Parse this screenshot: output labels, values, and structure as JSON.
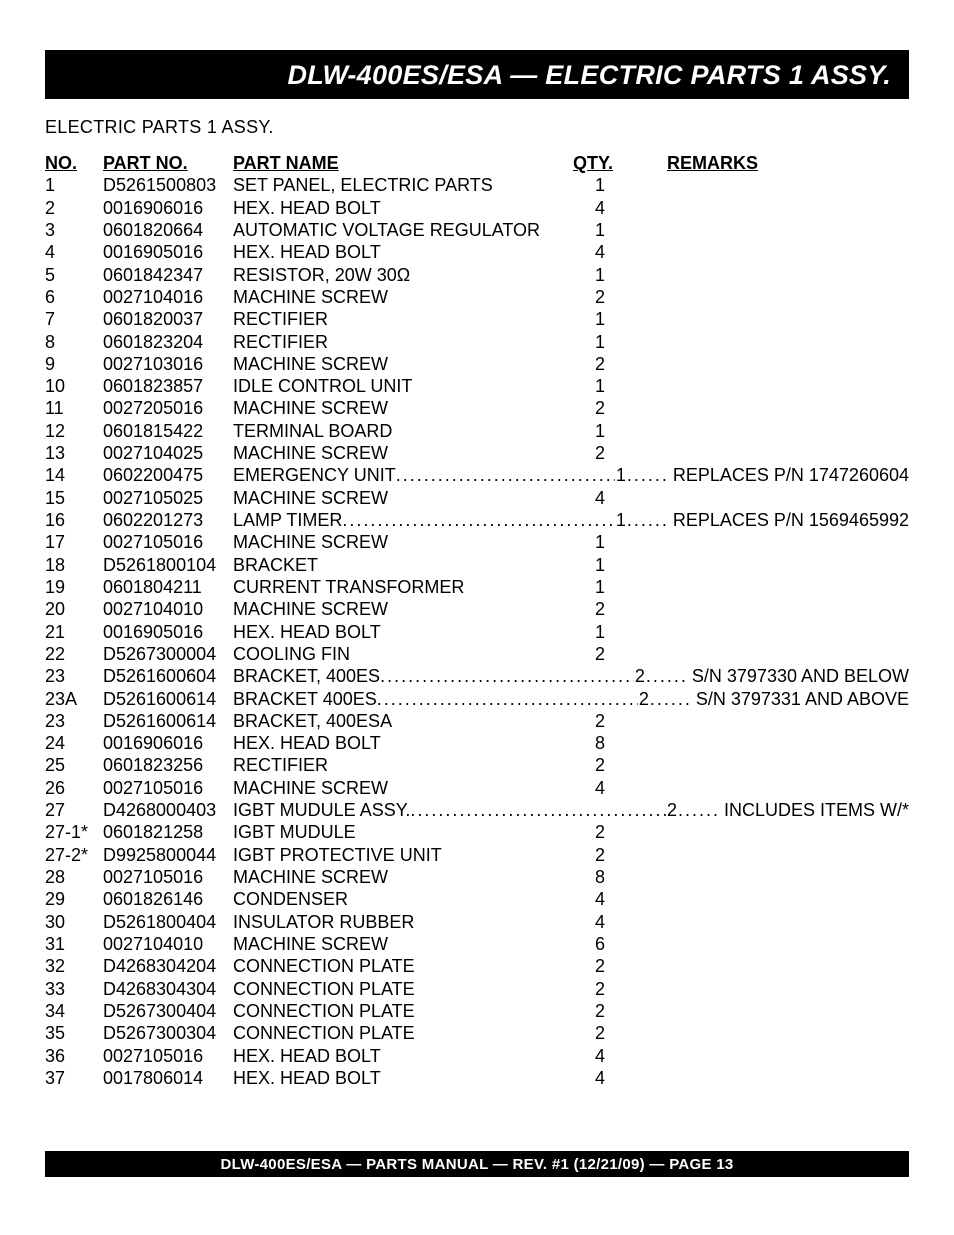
{
  "colors": {
    "bg": "#ffffff",
    "bar_bg": "#000000",
    "bar_fg": "#ffffff",
    "text": "#000000"
  },
  "title": "DLW-400ES/ESA — ELECTRIC PARTS 1 ASSY.",
  "subtitle": "ELECTRIC PARTS 1  ASSY.",
  "headers": {
    "no": "NO.",
    "pn": "PART NO.",
    "name": "PART NAME",
    "qty": "QTY.",
    "rem": "REMARKS"
  },
  "footer": "DLW-400ES/ESA —  PARTS MANUAL — REV. #1  (12/21/09) — PAGE 13",
  "rows": [
    {
      "no": "1",
      "pn": "D5261500803",
      "name": "SET PANEL, ELECTRIC PARTS",
      "qty": "1",
      "rem": ""
    },
    {
      "no": "2",
      "pn": "0016906016",
      "name": "HEX. HEAD BOLT",
      "qty": "4",
      "rem": ""
    },
    {
      "no": "3",
      "pn": "0601820664",
      "name": "AUTOMATIC VOLTAGE REGULATOR",
      "qty": "1",
      "rem": ""
    },
    {
      "no": "4",
      "pn": "0016905016",
      "name": "HEX. HEAD BOLT",
      "qty": "4",
      "rem": ""
    },
    {
      "no": "5",
      "pn": "0601842347",
      "name": "RESISTOR, 20W 30Ω",
      "qty": "1",
      "rem": ""
    },
    {
      "no": "6",
      "pn": "0027104016",
      "name": "MACHINE SCREW",
      "qty": "2",
      "rem": ""
    },
    {
      "no": "7",
      "pn": "0601820037",
      "name": "RECTIFIER",
      "qty": "1",
      "rem": ""
    },
    {
      "no": "8",
      "pn": "0601823204",
      "name": "RECTIFIER",
      "qty": "1",
      "rem": ""
    },
    {
      "no": "9",
      "pn": "0027103016",
      "name": "MACHINE SCREW",
      "qty": "2",
      "rem": ""
    },
    {
      "no": "10",
      "pn": "0601823857",
      "name": "IDLE CONTROL UNIT",
      "qty": "1",
      "rem": ""
    },
    {
      "no": "11",
      "pn": "0027205016",
      "name": "MACHINE SCREW",
      "qty": "2",
      "rem": ""
    },
    {
      "no": "12",
      "pn": "0601815422",
      "name": "TERMINAL BOARD",
      "qty": "1",
      "rem": ""
    },
    {
      "no": "13",
      "pn": "0027104025",
      "name": "MACHINE SCREW",
      "qty": "2",
      "rem": ""
    },
    {
      "no": "14",
      "pn": "0602200475",
      "name": "EMERGENCY UNIT",
      "qty": "1",
      "rem": "REPLACES P/N 1747260604",
      "dotted": true
    },
    {
      "no": "15",
      "pn": "0027105025",
      "name": "MACHINE SCREW",
      "qty": "4",
      "rem": ""
    },
    {
      "no": "16",
      "pn": "0602201273",
      "name": "LAMP TIMER",
      "qty": "1",
      "rem": "REPLACES P/N 1569465992",
      "dotted": true
    },
    {
      "no": "17",
      "pn": "0027105016",
      "name": "MACHINE SCREW",
      "qty": "1",
      "rem": ""
    },
    {
      "no": "18",
      "pn": "D5261800104",
      "name": "BRACKET",
      "qty": "1",
      "rem": ""
    },
    {
      "no": "19",
      "pn": "0601804211",
      "name": "CURRENT TRANSFORMER",
      "qty": "1",
      "rem": ""
    },
    {
      "no": "20",
      "pn": "0027104010",
      "name": "MACHINE SCREW",
      "qty": "2",
      "rem": ""
    },
    {
      "no": "21",
      "pn": "0016905016",
      "name": "HEX. HEAD BOLT",
      "qty": "1",
      "rem": ""
    },
    {
      "no": "22",
      "pn": "D5267300004",
      "name": "COOLING FIN",
      "qty": "2",
      "rem": ""
    },
    {
      "no": "23",
      "pn": "D5261600604",
      "name": "BRACKET, 400ES",
      "qty": "2",
      "rem": "S/N 3797330 AND BELOW",
      "dotted": true
    },
    {
      "no": "23A",
      "pn": "D5261600614",
      "name": "BRACKET 400ES",
      "qty": "2",
      "rem": "S/N 3797331 AND ABOVE",
      "dotted": true
    },
    {
      "no": "23",
      "pn": "D5261600614",
      "name": "BRACKET, 400ESA",
      "qty": "2",
      "rem": ""
    },
    {
      "no": "24",
      "pn": "0016906016",
      "name": "HEX. HEAD BOLT",
      "qty": "8",
      "rem": ""
    },
    {
      "no": "25",
      "pn": "0601823256",
      "name": "RECTIFIER",
      "qty": "2",
      "rem": ""
    },
    {
      "no": "26",
      "pn": "0027105016",
      "name": "MACHINE SCREW",
      "qty": "4",
      "rem": ""
    },
    {
      "no": "27",
      "pn": "D4268000403",
      "name": "IGBT MUDULE ASSY.",
      "qty": "2",
      "rem": "INCLUDES ITEMS W/*",
      "dotted": true
    },
    {
      "no": "27-1*",
      "pn": "0601821258",
      "name": "IGBT MUDULE",
      "qty": "2",
      "rem": ""
    },
    {
      "no": "27-2*",
      "pn": "D9925800044",
      "name": "IGBT PROTECTIVE UNIT",
      "qty": "2",
      "rem": ""
    },
    {
      "no": "28",
      "pn": "0027105016",
      "name": "MACHINE SCREW",
      "qty": "8",
      "rem": ""
    },
    {
      "no": "29",
      "pn": "0601826146",
      "name": "CONDENSER",
      "qty": "4",
      "rem": ""
    },
    {
      "no": "30",
      "pn": "D5261800404",
      "name": "INSULATOR RUBBER",
      "qty": "4",
      "rem": ""
    },
    {
      "no": "31",
      "pn": "0027104010",
      "name": "MACHINE SCREW",
      "qty": "6",
      "rem": ""
    },
    {
      "no": "32",
      "pn": "D4268304204",
      "name": "CONNECTION PLATE",
      "qty": "2",
      "rem": ""
    },
    {
      "no": "33",
      "pn": "D4268304304",
      "name": "CONNECTION PLATE",
      "qty": "2",
      "rem": ""
    },
    {
      "no": "34",
      "pn": "D5267300404",
      "name": "CONNECTION PLATE",
      "qty": "2",
      "rem": ""
    },
    {
      "no": "35",
      "pn": "D5267300304",
      "name": "CONNECTION PLATE",
      "qty": "2",
      "rem": ""
    },
    {
      "no": "36",
      "pn": "0027105016",
      "name": "HEX. HEAD BOLT",
      "qty": "4",
      "rem": ""
    },
    {
      "no": "37",
      "pn": "0017806014",
      "name": "HEX. HEAD BOLT",
      "qty": "4",
      "rem": ""
    }
  ]
}
